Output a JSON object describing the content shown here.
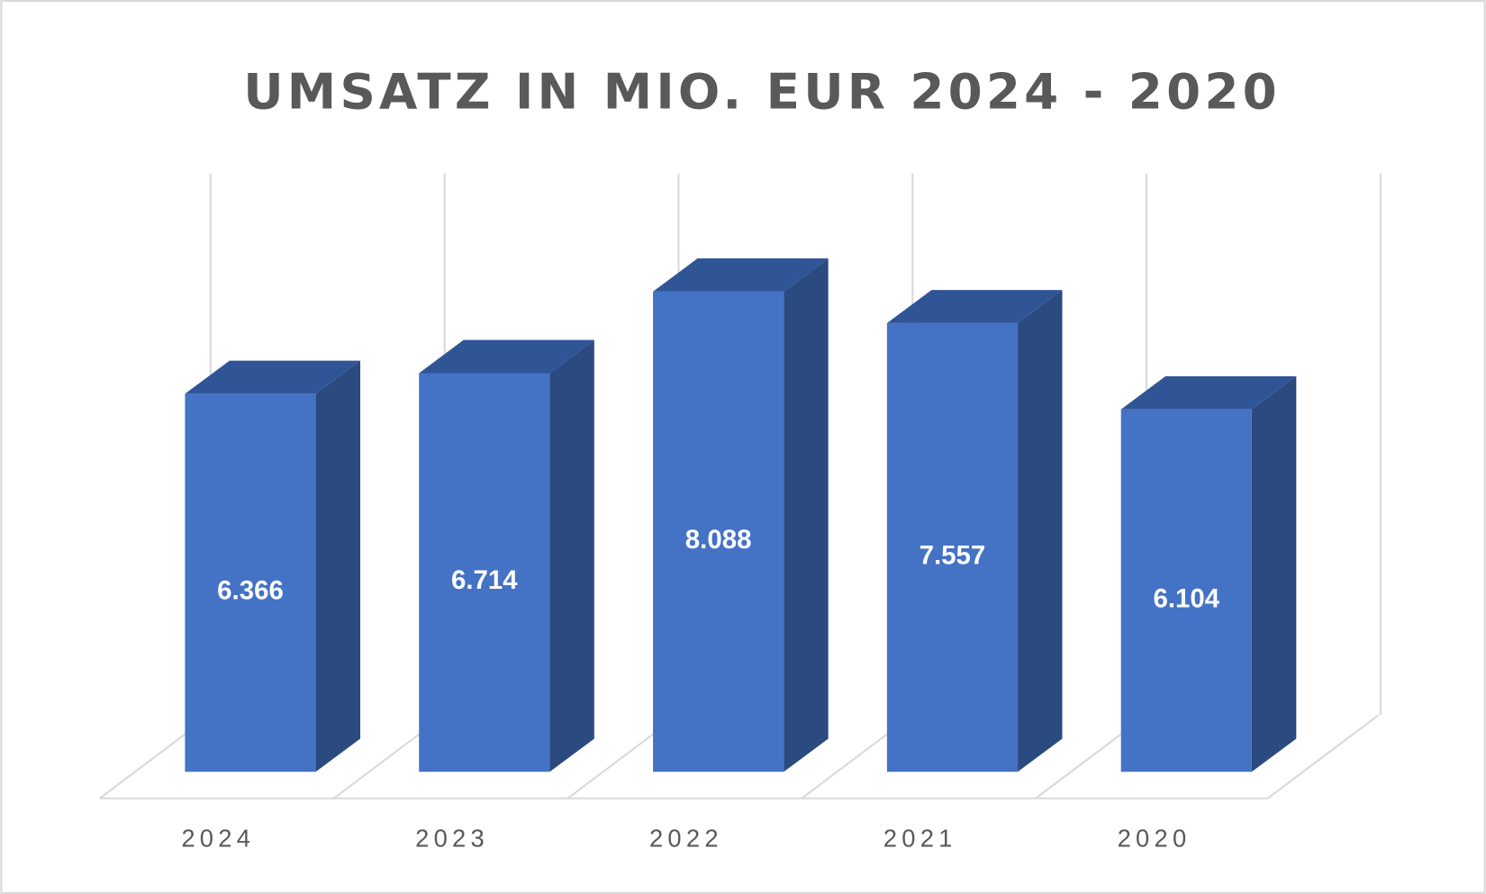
{
  "chart_data": {
    "type": "bar3d",
    "title": "UMSATZ IN MIO. EUR 2024 - 2020",
    "categories": [
      "2024",
      "2023",
      "2022",
      "2021",
      "2020"
    ],
    "values": [
      6.366,
      6.714,
      8.088,
      7.557,
      6.104
    ],
    "color": "#4472c4",
    "ylim": [
      0,
      10
    ]
  }
}
